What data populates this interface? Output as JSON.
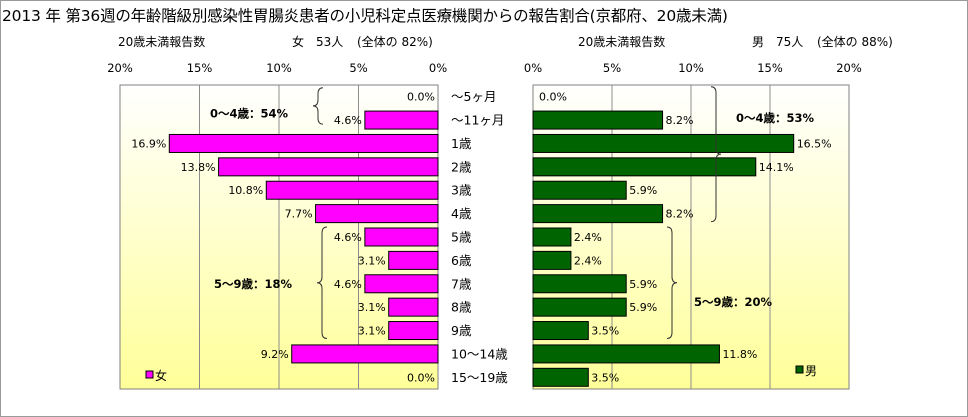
{
  "title": "2013 年 第36週の年齢階級別感染性胃腸炎患者の小児科定点医療機関からの報告割合(京都府、20歳未満)",
  "left_subtitle": {
    "label": "20歳未満報告数",
    "sex": "女",
    "count": "53人",
    "share": "(全体の 82%)"
  },
  "right_subtitle": {
    "label": "20歳未満報告数",
    "sex": "男",
    "count": "75人",
    "share": "(全体の 88%)"
  },
  "colors": {
    "female": "#ff00ff",
    "male": "#006400",
    "plot_bg_top": "#ffffff",
    "plot_bg_bottom": "#ffff99"
  },
  "chart_data": [
    {
      "type": "bar",
      "orientation": "horizontal-reversed",
      "series": [
        {
          "name": "女",
          "values": [
            0.0,
            4.6,
            16.9,
            13.8,
            10.8,
            7.7,
            4.6,
            3.1,
            4.6,
            3.1,
            3.1,
            9.2,
            0.0
          ]
        }
      ],
      "value_labels": [
        "0.0%",
        "4.6%",
        "16.9%",
        "13.8%",
        "10.8%",
        "7.7%",
        "4.6%",
        "3.1%",
        "4.6%",
        "3.1%",
        "3.1%",
        "9.2%",
        "0.0%"
      ],
      "xlim": [
        0,
        20
      ],
      "x_ticks": [
        "20%",
        "15%",
        "10%",
        "5%",
        "0%"
      ],
      "grid": true,
      "legend": "bottom-left",
      "annotations": [
        "0～4歳：54%",
        "5～9歳：18%"
      ]
    },
    {
      "type": "bar",
      "orientation": "horizontal",
      "series": [
        {
          "name": "男",
          "values": [
            0.0,
            8.2,
            16.5,
            14.1,
            5.9,
            8.2,
            2.4,
            2.4,
            5.9,
            5.9,
            3.5,
            11.8,
            3.5
          ]
        }
      ],
      "value_labels": [
        "0.0%",
        "8.2%",
        "16.5%",
        "14.1%",
        "5.9%",
        "8.2%",
        "2.4%",
        "2.4%",
        "5.9%",
        "5.9%",
        "3.5%",
        "11.8%",
        "3.5%"
      ],
      "xlim": [
        0,
        20
      ],
      "x_ticks": [
        "0%",
        "5%",
        "10%",
        "15%",
        "20%"
      ],
      "grid": true,
      "legend": "bottom-right",
      "annotations": [
        "0～4歳：53%",
        "5～9歳：20%"
      ]
    }
  ],
  "categories": [
    "～5ヶ月",
    "～11ヶ月",
    "1歳",
    "2歳",
    "3歳",
    "4歳",
    "5歳",
    "6歳",
    "7歳",
    "8歳",
    "9歳",
    "10～14歳",
    "15～19歳"
  ]
}
